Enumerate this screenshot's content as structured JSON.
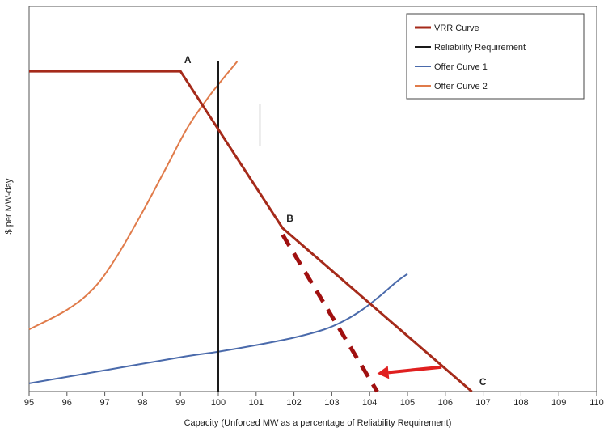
{
  "chart_data": {
    "type": "line",
    "title": "",
    "xlabel": "Capacity (Unforced MW as a percentage of Reliability Requirement)",
    "ylabel": "$ per MW-day",
    "xlim": [
      95,
      110
    ],
    "ylim": [
      0,
      100
    ],
    "x_ticks": [
      "95",
      "96",
      "97",
      "98",
      "99",
      "100",
      "101",
      "102",
      "103",
      "104",
      "105",
      "106",
      "107",
      "108",
      "109",
      "110"
    ],
    "y_ticks": [],
    "grid": false,
    "legend_position": "top-right",
    "colors": {
      "vrr": "#a52a1a",
      "reliability": "#1a1a1a",
      "offer1": "#4a6aab",
      "offer2": "#e07b4a",
      "arrow": "#e02020",
      "dashed": "#a01010"
    },
    "series": [
      {
        "name": "VRR Curve",
        "key": "vrr",
        "points": [
          [
            95,
            98
          ],
          [
            99,
            98
          ],
          [
            101.7,
            50
          ],
          [
            106.7,
            0
          ]
        ]
      },
      {
        "name": "Reliability Requirement",
        "key": "reliability",
        "points": [
          [
            100,
            101
          ],
          [
            100,
            0
          ]
        ]
      },
      {
        "name": "Offer Curve 1",
        "key": "offer1",
        "points": [
          [
            95,
            2.5
          ],
          [
            97,
            6.5
          ],
          [
            99,
            10.5
          ],
          [
            100,
            12.2
          ],
          [
            101,
            14.2
          ],
          [
            102,
            16.5
          ],
          [
            102.8,
            19
          ],
          [
            103.3,
            21.5
          ],
          [
            103.8,
            25
          ],
          [
            104.3,
            29.5
          ],
          [
            104.7,
            33.5
          ],
          [
            105,
            36
          ]
        ]
      },
      {
        "name": "Offer Curve 2",
        "key": "offer2",
        "points": [
          [
            95,
            19
          ],
          [
            96,
            25
          ],
          [
            96.7,
            31.5
          ],
          [
            97.3,
            41
          ],
          [
            98,
            55
          ],
          [
            98.6,
            68
          ],
          [
            99.2,
            81
          ],
          [
            99.8,
            91
          ],
          [
            100.5,
            101
          ]
        ]
      }
    ],
    "annotations": {
      "points": [
        {
          "label": "A",
          "x": 99.1,
          "y": 100.5
        },
        {
          "label": "B",
          "x": 101.8,
          "y": 52
        },
        {
          "label": "C",
          "x": 106.9,
          "y": 2
        }
      ],
      "dashed_line": [
        [
          101.7,
          48
        ],
        [
          104.2,
          0
        ]
      ],
      "arrow": {
        "from": [
          105.9,
          7.5
        ],
        "to": [
          104.2,
          5.5
        ]
      },
      "gray_mark": {
        "x": 101.1,
        "y1": 88,
        "y2": 75
      }
    }
  }
}
